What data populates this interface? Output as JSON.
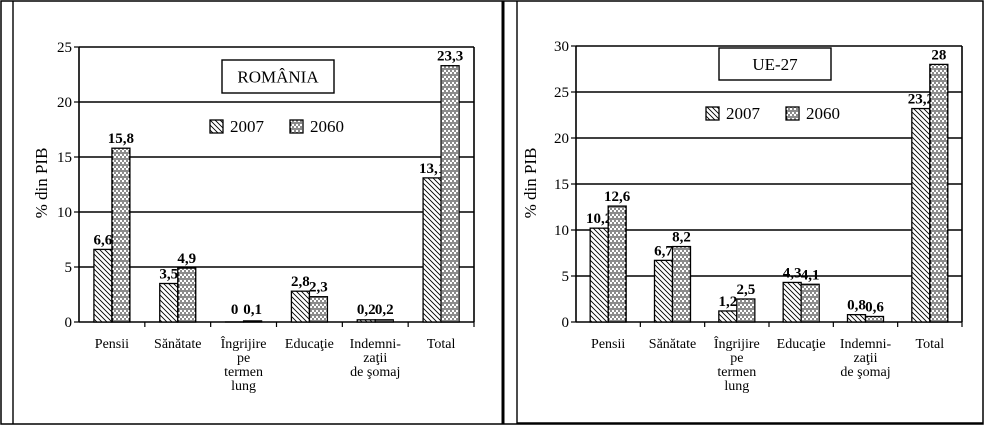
{
  "chart_data": [
    {
      "type": "bar",
      "title": "ROMÂNIA",
      "ylabel": "% din PIB",
      "xlabel": "",
      "ylim": [
        0,
        25
      ],
      "yticks": [
        0,
        5,
        10,
        15,
        20,
        25
      ],
      "grid": true,
      "legend_position": "top-center",
      "categories": [
        [
          "Pensii"
        ],
        [
          "Sănătate"
        ],
        [
          "Îngrijire",
          "pe",
          "termen",
          "lung"
        ],
        [
          "Educaţie"
        ],
        [
          "Indemni-",
          "zaţii",
          "de şomaj"
        ],
        [
          "Total"
        ]
      ],
      "series": [
        {
          "name": "2007",
          "pattern": "diagonal",
          "values": [
            6.6,
            3.5,
            0,
            2.8,
            0.2,
            13.1
          ],
          "labels": [
            "6,6",
            "3,5",
            "0",
            "2,8",
            "0,2",
            "13,1"
          ]
        },
        {
          "name": "2060",
          "pattern": "grid",
          "values": [
            15.8,
            4.9,
            0.1,
            2.3,
            0.2,
            23.3
          ],
          "labels": [
            "15,8",
            "4,9",
            "0,1",
            "2,3",
            "0,2",
            "23,3"
          ]
        }
      ]
    },
    {
      "type": "bar",
      "title": "UE-27",
      "ylabel": "% din PIB",
      "xlabel": "",
      "ylim": [
        0,
        30
      ],
      "yticks": [
        0,
        5,
        10,
        15,
        20,
        25,
        30
      ],
      "grid": true,
      "legend_position": "top-center",
      "categories": [
        [
          "Pensii"
        ],
        [
          "Sănătate"
        ],
        [
          "Îngrijire",
          "pe",
          "termen",
          "lung"
        ],
        [
          "Educaţie"
        ],
        [
          "Indemni-",
          "zaţii",
          "de şomaj"
        ],
        [
          "Total"
        ]
      ],
      "series": [
        {
          "name": "2007",
          "pattern": "diagonal",
          "values": [
            10.2,
            6.7,
            1.2,
            4.3,
            0.8,
            23.2
          ],
          "labels": [
            "10,2",
            "6,7",
            "1,2",
            "4,3",
            "0,8",
            "23,2"
          ]
        },
        {
          "name": "2060",
          "pattern": "grid",
          "values": [
            12.6,
            8.2,
            2.5,
            4.1,
            0.6,
            28
          ],
          "labels": [
            "12,6",
            "8,2",
            "2,5",
            "4,1",
            "0,6",
            "28"
          ]
        }
      ]
    }
  ]
}
